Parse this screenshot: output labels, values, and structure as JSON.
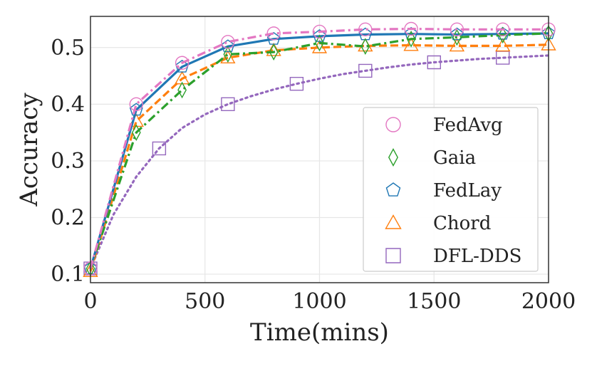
{
  "chart_data": {
    "type": "line",
    "xlabel": "Time(mins)",
    "ylabel": "Accuracy",
    "xlim": [
      0,
      2000
    ],
    "ylim": [
      0.085,
      0.555
    ],
    "xticks": [
      0,
      500,
      1000,
      1500,
      2000
    ],
    "yticks": [
      0.1,
      0.2,
      0.3,
      0.4,
      0.5
    ],
    "xtick_labels": [
      "0",
      "500",
      "1000",
      "1500",
      "2000"
    ],
    "ytick_labels": [
      "0.1",
      "0.2",
      "0.3",
      "0.4",
      "0.5"
    ],
    "grid": true,
    "legend_position": "lower-right",
    "series": [
      {
        "name": "FedAvg",
        "color": "#e377c2",
        "dash": "dashdot",
        "marker": "circle",
        "line_x": [
          0,
          200,
          400,
          600,
          800,
          1000,
          1200,
          1400,
          1600,
          1800,
          2000
        ],
        "line_y": [
          0.11,
          0.4,
          0.473,
          0.51,
          0.525,
          0.528,
          0.532,
          0.533,
          0.532,
          0.532,
          0.532
        ],
        "marker_x": [
          0,
          200,
          400,
          600,
          800,
          1000,
          1200,
          1400,
          1600,
          1800,
          2000
        ],
        "marker_y": [
          0.11,
          0.4,
          0.473,
          0.51,
          0.525,
          0.528,
          0.532,
          0.533,
          0.532,
          0.532,
          0.532
        ]
      },
      {
        "name": "Gaia",
        "color": "#2ca02c",
        "dash": "dashdot",
        "marker": "diamond",
        "line_x": [
          0,
          200,
          400,
          600,
          800,
          1000,
          1200,
          1400,
          1600,
          1800,
          2000
        ],
        "line_y": [
          0.11,
          0.35,
          0.425,
          0.488,
          0.492,
          0.508,
          0.502,
          0.515,
          0.518,
          0.522,
          0.525
        ],
        "marker_x": [
          0,
          200,
          400,
          600,
          800,
          1000,
          1200,
          1400,
          1600,
          1800,
          2000
        ],
        "marker_y": [
          0.11,
          0.35,
          0.425,
          0.488,
          0.492,
          0.508,
          0.502,
          0.515,
          0.518,
          0.522,
          0.525
        ]
      },
      {
        "name": "FedLay",
        "color": "#1f77b4",
        "dash": "solid",
        "marker": "pentagon",
        "line_x": [
          0,
          200,
          400,
          600,
          800,
          1000,
          1200,
          1400,
          1600,
          1800,
          2000
        ],
        "line_y": [
          0.11,
          0.39,
          0.466,
          0.502,
          0.515,
          0.52,
          0.523,
          0.524,
          0.523,
          0.524,
          0.525
        ],
        "marker_x": [
          0,
          200,
          400,
          600,
          800,
          1000,
          1200,
          1400,
          1600,
          1800,
          2000
        ],
        "marker_y": [
          0.11,
          0.39,
          0.466,
          0.502,
          0.515,
          0.52,
          0.523,
          0.524,
          0.523,
          0.524,
          0.525
        ]
      },
      {
        "name": "Chord",
        "color": "#ff7f0e",
        "dash": "dashed",
        "marker": "triangle",
        "line_x": [
          0,
          200,
          400,
          600,
          800,
          1000,
          1200,
          1400,
          1600,
          1800,
          2000
        ],
        "line_y": [
          0.105,
          0.37,
          0.445,
          0.482,
          0.495,
          0.5,
          0.503,
          0.504,
          0.503,
          0.503,
          0.505
        ],
        "marker_x": [
          0,
          200,
          400,
          600,
          800,
          1000,
          1200,
          1400,
          1600,
          1800,
          2000
        ],
        "marker_y": [
          0.105,
          0.37,
          0.445,
          0.482,
          0.495,
          0.5,
          0.503,
          0.504,
          0.503,
          0.503,
          0.505
        ]
      },
      {
        "name": "DFL-DDS",
        "color": "#9467bd",
        "dash": "dotted",
        "marker": "square",
        "line_x": [
          0,
          100,
          200,
          300,
          400,
          500,
          600,
          700,
          800,
          900,
          1000,
          1100,
          1200,
          1300,
          1400,
          1500,
          1600,
          1700,
          1800,
          1900,
          2000
        ],
        "line_y": [
          0.11,
          0.205,
          0.272,
          0.322,
          0.358,
          0.382,
          0.4,
          0.414,
          0.426,
          0.436,
          0.445,
          0.453,
          0.459,
          0.465,
          0.47,
          0.474,
          0.477,
          0.48,
          0.482,
          0.484,
          0.486
        ],
        "marker_x": [
          0,
          300,
          600,
          900,
          1200,
          1500,
          1800
        ],
        "marker_y": [
          0.11,
          0.322,
          0.4,
          0.436,
          0.459,
          0.474,
          0.482
        ]
      }
    ]
  }
}
